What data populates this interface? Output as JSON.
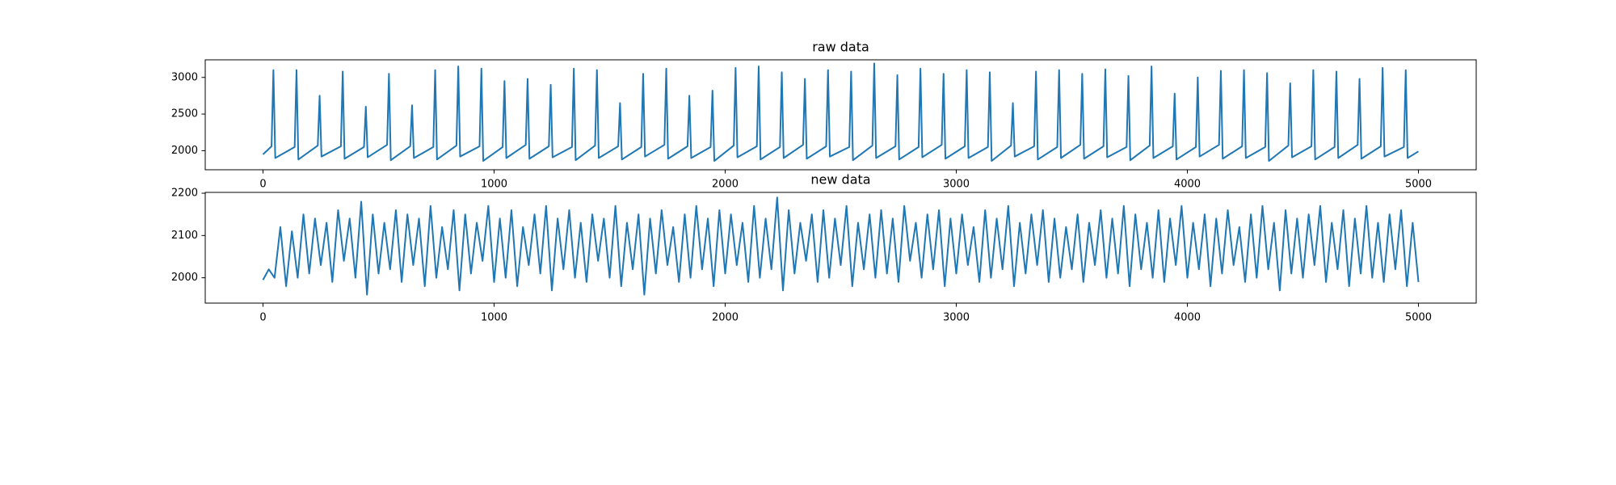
{
  "chart_data": [
    {
      "type": "line",
      "title": "raw data",
      "color": "#1f77b4",
      "xlim": [
        -250,
        5250
      ],
      "ylim": [
        1740,
        3240
      ],
      "xticks": [
        0,
        1000,
        2000,
        3000,
        4000,
        5000
      ],
      "yticks": [
        2000,
        2500,
        3000
      ],
      "x": [
        0,
        37,
        45,
        53,
        137,
        145,
        153,
        237,
        245,
        253,
        337,
        345,
        353,
        437,
        445,
        453,
        537,
        545,
        553,
        637,
        645,
        653,
        737,
        745,
        753,
        837,
        845,
        853,
        937,
        945,
        953,
        1037,
        1045,
        1053,
        1137,
        1145,
        1153,
        1237,
        1245,
        1253,
        1337,
        1345,
        1353,
        1437,
        1445,
        1453,
        1537,
        1545,
        1553,
        1637,
        1645,
        1653,
        1737,
        1745,
        1753,
        1837,
        1845,
        1853,
        1937,
        1945,
        1953,
        2037,
        2045,
        2053,
        2137,
        2145,
        2153,
        2237,
        2245,
        2253,
        2337,
        2345,
        2353,
        2437,
        2445,
        2453,
        2537,
        2545,
        2553,
        2637,
        2645,
        2653,
        2737,
        2745,
        2753,
        2837,
        2845,
        2853,
        2937,
        2945,
        2953,
        3037,
        3045,
        3053,
        3137,
        3145,
        3153,
        3237,
        3245,
        3253,
        3337,
        3345,
        3353,
        3437,
        3445,
        3453,
        3537,
        3545,
        3553,
        3637,
        3645,
        3653,
        3737,
        3745,
        3753,
        3837,
        3845,
        3853,
        3937,
        3945,
        3953,
        4037,
        4045,
        4053,
        4137,
        4145,
        4153,
        4237,
        4245,
        4253,
        4337,
        4345,
        4353,
        4437,
        4445,
        4453,
        4537,
        4545,
        4553,
        4637,
        4645,
        4653,
        4737,
        4745,
        4753,
        4837,
        4845,
        4853,
        4937,
        4945,
        4953,
        5000
      ],
      "values": [
        1950,
        2060,
        3100,
        1900,
        2050,
        3100,
        1880,
        2070,
        2750,
        1920,
        2060,
        3080,
        1890,
        2050,
        2600,
        1910,
        2080,
        3050,
        1870,
        2060,
        2620,
        1900,
        2050,
        3100,
        1880,
        2070,
        3150,
        1920,
        2060,
        3120,
        1860,
        2050,
        2950,
        1900,
        2080,
        2980,
        1890,
        2060,
        2900,
        1910,
        2050,
        3120,
        1870,
        2070,
        3100,
        1900,
        2060,
        2650,
        1880,
        2050,
        3050,
        1920,
        2080,
        3120,
        1890,
        2060,
        2750,
        1900,
        2050,
        2820,
        1860,
        2070,
        3130,
        1910,
        2060,
        3150,
        1880,
        2050,
        3070,
        1900,
        2080,
        2980,
        1890,
        2060,
        3100,
        1920,
        2050,
        3080,
        1870,
        2070,
        3190,
        1900,
        2060,
        3030,
        1880,
        2050,
        3120,
        1910,
        2080,
        3050,
        1890,
        2060,
        3100,
        1900,
        2050,
        3070,
        1860,
        2070,
        2650,
        1920,
        2060,
        3080,
        1880,
        2050,
        3100,
        1900,
        2080,
        3050,
        1890,
        2060,
        3110,
        1910,
        2050,
        3020,
        1870,
        2070,
        3150,
        1900,
        2060,
        2780,
        1880,
        2050,
        3000,
        1920,
        2080,
        3090,
        1890,
        2060,
        3100,
        1900,
        2050,
        3060,
        1860,
        2070,
        2920,
        1910,
        2060,
        3100,
        1880,
        2050,
        3080,
        1900,
        2080,
        2980,
        1890,
        2060,
        3130,
        1920,
        2050,
        3100,
        1900,
        1990
      ]
    },
    {
      "type": "line",
      "title": "new data",
      "color": "#1f77b4",
      "xlim": [
        -250,
        5250
      ],
      "ylim": [
        1940,
        2202
      ],
      "xticks": [
        0,
        1000,
        2000,
        3000,
        4000,
        5000
      ],
      "yticks": [
        2000,
        2100,
        2200
      ],
      "x": [
        0,
        25,
        50,
        75,
        100,
        125,
        150,
        175,
        200,
        225,
        250,
        275,
        300,
        325,
        350,
        375,
        400,
        425,
        450,
        475,
        500,
        525,
        550,
        575,
        600,
        625,
        650,
        675,
        700,
        725,
        750,
        775,
        800,
        825,
        850,
        875,
        900,
        925,
        950,
        975,
        1000,
        1025,
        1050,
        1075,
        1100,
        1125,
        1150,
        1175,
        1200,
        1225,
        1250,
        1275,
        1300,
        1325,
        1350,
        1375,
        1400,
        1425,
        1450,
        1475,
        1500,
        1525,
        1550,
        1575,
        1600,
        1625,
        1650,
        1675,
        1700,
        1725,
        1750,
        1775,
        1800,
        1825,
        1850,
        1875,
        1900,
        1925,
        1950,
        1975,
        2000,
        2025,
        2050,
        2075,
        2100,
        2125,
        2150,
        2175,
        2200,
        2225,
        2250,
        2275,
        2300,
        2325,
        2350,
        2375,
        2400,
        2425,
        2450,
        2475,
        2500,
        2525,
        2550,
        2575,
        2600,
        2625,
        2650,
        2675,
        2700,
        2725,
        2750,
        2775,
        2800,
        2825,
        2850,
        2875,
        2900,
        2925,
        2950,
        2975,
        3000,
        3025,
        3050,
        3075,
        3100,
        3125,
        3150,
        3175,
        3200,
        3225,
        3250,
        3275,
        3300,
        3325,
        3350,
        3375,
        3400,
        3425,
        3450,
        3475,
        3500,
        3525,
        3550,
        3575,
        3600,
        3625,
        3650,
        3675,
        3700,
        3725,
        3750,
        3775,
        3800,
        3825,
        3850,
        3875,
        3900,
        3925,
        3950,
        3975,
        4000,
        4025,
        4050,
        4075,
        4100,
        4125,
        4150,
        4175,
        4200,
        4225,
        4250,
        4275,
        4300,
        4325,
        4350,
        4375,
        4400,
        4425,
        4450,
        4475,
        4500,
        4525,
        4550,
        4575,
        4600,
        4625,
        4650,
        4675,
        4700,
        4725,
        4750,
        4775,
        4800,
        4825,
        4850,
        4875,
        4900,
        4925,
        4950,
        4975,
        5000
      ],
      "values": [
        1995,
        2020,
        2000,
        2120,
        1980,
        2110,
        2000,
        2150,
        2010,
        2140,
        2030,
        2130,
        1990,
        2160,
        2040,
        2140,
        2000,
        2180,
        1960,
        2150,
        2010,
        2130,
        2020,
        2160,
        1990,
        2150,
        2030,
        2140,
        1980,
        2170,
        2000,
        2120,
        2020,
        2160,
        1970,
        2150,
        2010,
        2130,
        2040,
        2170,
        1990,
        2140,
        2000,
        2160,
        1980,
        2120,
        2030,
        2150,
        2010,
        2170,
        1970,
        2140,
        2020,
        2160,
        2000,
        2130,
        1990,
        2150,
        2040,
        2140,
        2000,
        2170,
        1980,
        2130,
        2020,
        2150,
        1960,
        2140,
        2010,
        2160,
        2030,
        2120,
        1990,
        2150,
        2000,
        2170,
        2020,
        2140,
        1980,
        2160,
        2010,
        2150,
        2030,
        2130,
        1990,
        2170,
        2000,
        2140,
        2020,
        2190,
        1970,
        2160,
        2010,
        2130,
        2040,
        2150,
        1990,
        2160,
        2000,
        2140,
        2030,
        2170,
        1980,
        2130,
        2020,
        2150,
        2000,
        2160,
        2010,
        2140,
        1990,
        2170,
        2040,
        2130,
        2000,
        2150,
        2020,
        2160,
        1980,
        2140,
        2010,
        2150,
        2030,
        2120,
        1990,
        2160,
        2000,
        2140,
        2020,
        2170,
        1980,
        2130,
        2010,
        2150,
        2030,
        2160,
        1990,
        2140,
        2000,
        2120,
        2020,
        2150,
        1990,
        2130,
        2030,
        2160,
        2000,
        2140,
        2010,
        2170,
        1980,
        2150,
        2020,
        2130,
        2000,
        2160,
        1990,
        2140,
        2030,
        2170,
        2000,
        2130,
        2020,
        2150,
        1980,
        2140,
        2010,
        2160,
        2030,
        2120,
        1990,
        2150,
        2000,
        2170,
        2020,
        2130,
        1970,
        2160,
        2010,
        2140,
        2000,
        2150,
        2030,
        2170,
        1990,
        2130,
        2020,
        2160,
        1980,
        2140,
        2010,
        2170,
        2000,
        2130,
        1990,
        2150,
        2020,
        2160,
        1980,
        2130,
        1990
      ]
    }
  ]
}
